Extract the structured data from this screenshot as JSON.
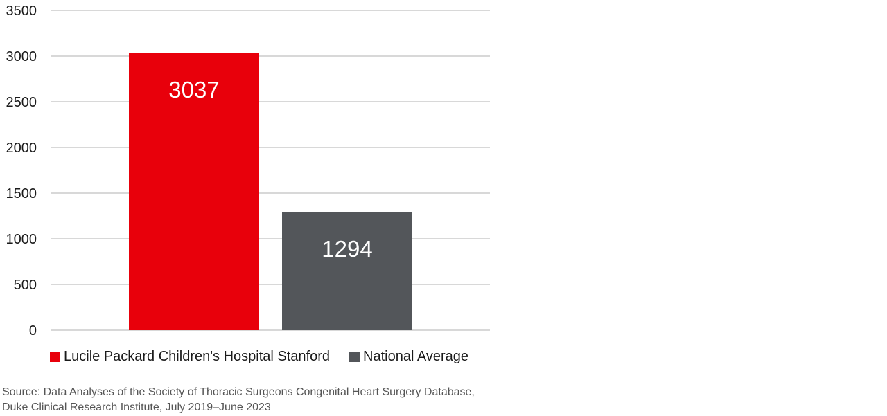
{
  "chart_data": {
    "type": "bar",
    "categories": [
      "Lucile Packard Children's Hospital Stanford",
      "National Average"
    ],
    "values": [
      3037,
      1294
    ],
    "data_labels": [
      "3037",
      "1294"
    ],
    "colors": [
      "#e8000b",
      "#53565a"
    ],
    "ylim": [
      0,
      3500
    ],
    "yticks": [
      0,
      500,
      1000,
      1500,
      2000,
      2500,
      3000,
      3500
    ],
    "ytick_labels": [
      "0",
      "500",
      "1000",
      "1500",
      "2000",
      "2500",
      "3000",
      "3500"
    ],
    "grid": true,
    "gridline_color": "#cccccc",
    "legend_position": "bottom-left",
    "title": "",
    "xlabel": "",
    "ylabel": ""
  },
  "legend": {
    "items": [
      {
        "label": "Lucile Packard Children's Hospital Stanford",
        "color": "#e8000b"
      },
      {
        "label": "National Average",
        "color": "#53565a"
      }
    ]
  },
  "source": {
    "line1": "Source: Data Analyses of the Society of Thoracic Surgeons Congenital Heart Surgery Database,",
    "line2": "Duke Clinical Research Institute, July 2019–June 2023"
  }
}
